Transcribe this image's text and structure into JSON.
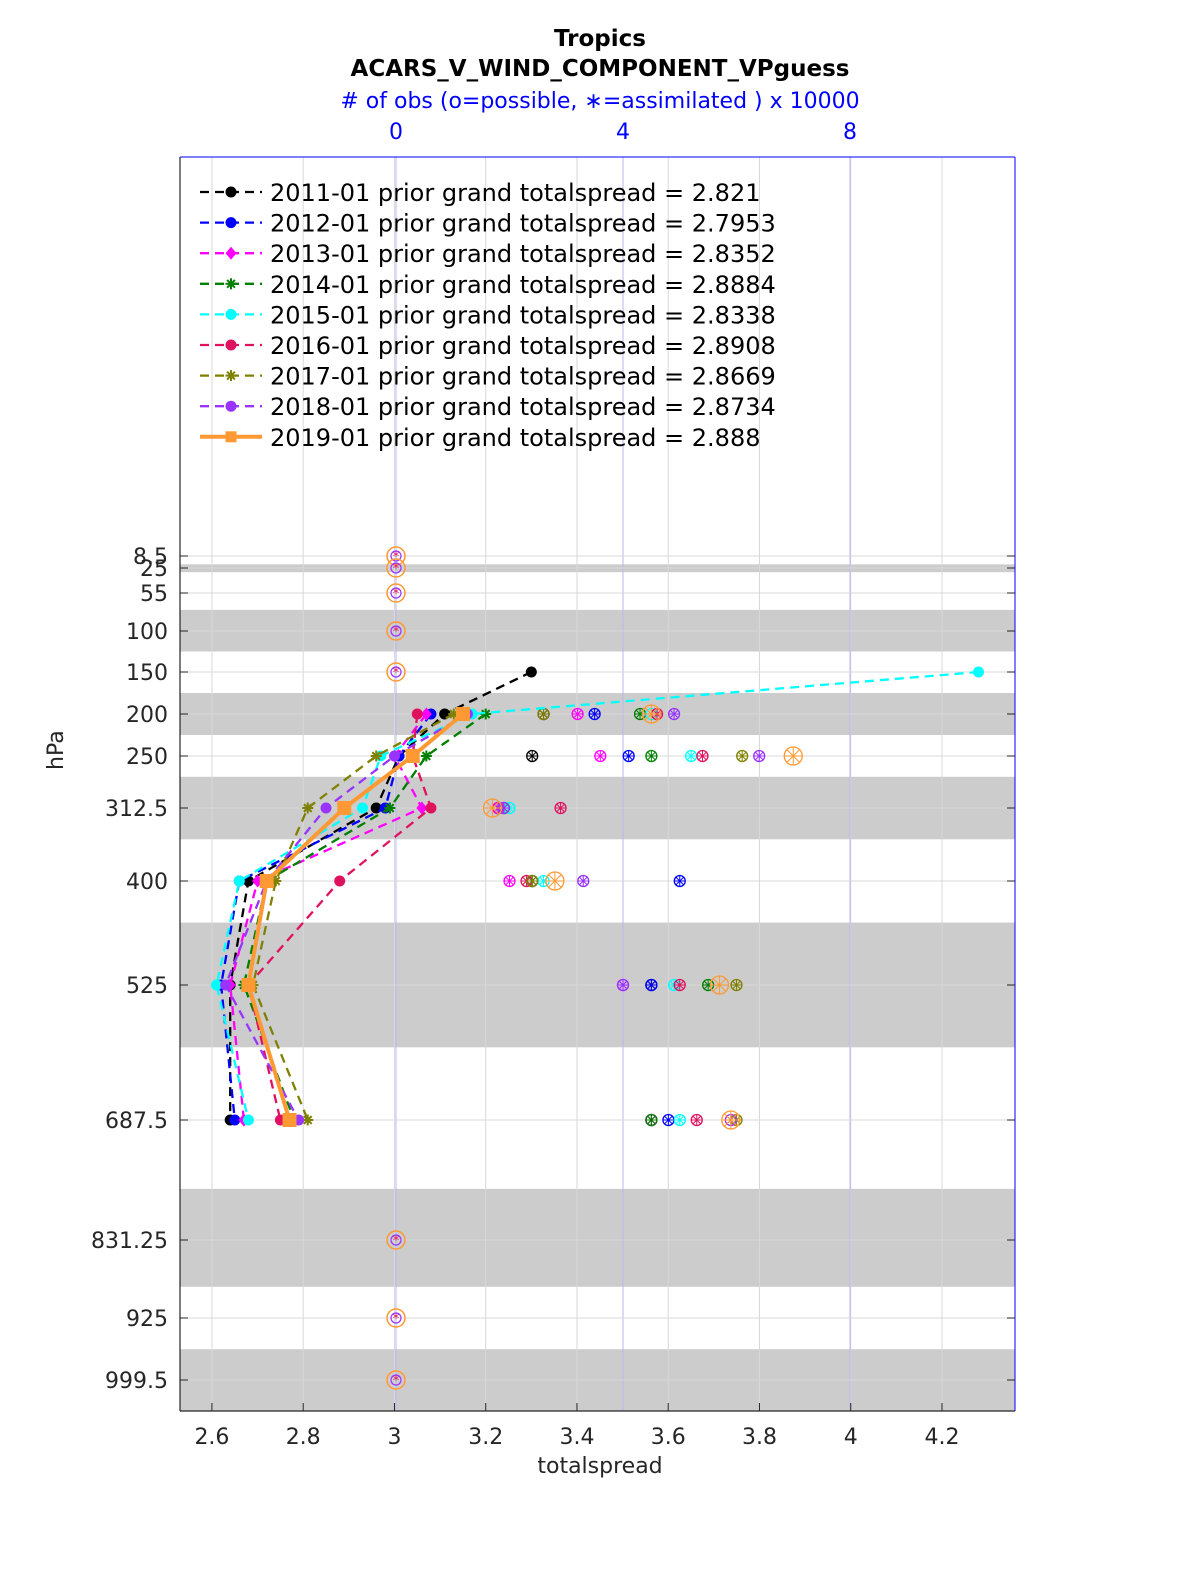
{
  "chart_data": {
    "type": "line",
    "title": "Tropics",
    "subtitle": "ACARS_V_WIND_COMPONENT_VPguess",
    "top_axis_label": "# of obs (o=possible, ∗=assimilated ) x 10000",
    "top_axis_ticks": [
      "0",
      "4",
      "8"
    ],
    "top_axis_values": [
      0,
      4,
      8
    ],
    "xlabel": "totalspread",
    "ylabel": "hPa",
    "xlim": [
      2.53,
      4.36
    ],
    "x_ticks": [
      2.6,
      2.8,
      3,
      3.2,
      3.4,
      3.6,
      3.8,
      4,
      4.2
    ],
    "x_tick_labels": [
      "2.6",
      "2.8",
      "3",
      "3.2",
      "3.4",
      "3.6",
      "3.8",
      "4",
      "4.2"
    ],
    "y_levels": [
      8.5,
      25,
      55,
      100,
      150,
      200,
      250,
      312.5,
      400,
      525,
      687.5,
      831.25,
      925,
      999.5
    ],
    "y_tick_labels": [
      "8.5",
      "25",
      "55",
      "100",
      "150",
      "200",
      "250",
      "312.5",
      "400",
      "525",
      "687.5",
      "831.25",
      "925",
      "999.5"
    ],
    "shaded_bands": [
      [
        20,
        30
      ],
      [
        75,
        125
      ],
      [
        175,
        225
      ],
      [
        275,
        350
      ],
      [
        450,
        600
      ],
      [
        770,
        887.5
      ],
      [
        962.5,
        1037
      ]
    ],
    "empty_levels": [
      8.5,
      25,
      55,
      100,
      150,
      831.25,
      925,
      999.5
    ],
    "grid": true,
    "legend_position": "top-left",
    "series": [
      {
        "name": "2011-01",
        "label": "2011-01 prior grand totalspread = 2.821",
        "color": "#000000",
        "marker": "circle",
        "levels": [
          150,
          200,
          250,
          312.5,
          400,
          525,
          687.5
        ],
        "x": [
          3.3,
          3.11,
          3.01,
          2.96,
          2.68,
          2.64,
          2.64
        ],
        "obs_possible": [
          null,
          2.6,
          2.4,
          1.8,
          2.4,
          4.5,
          4.5
        ],
        "obs_assim": [
          null,
          2.6,
          2.4,
          1.8,
          2.4,
          4.5,
          4.5
        ]
      },
      {
        "name": "2012-01",
        "label": "2012-01 prior grand totalspread = 2.7953",
        "color": "#0000ff",
        "marker": "circle",
        "levels": [
          200,
          250,
          312.5,
          400,
          525,
          687.5
        ],
        "x": [
          3.08,
          3.01,
          2.98,
          2.66,
          2.62,
          2.65
        ],
        "obs_possible": [
          3.5,
          4.1,
          1.8,
          5.0,
          4.5,
          4.8
        ],
        "obs_assim": [
          3.5,
          4.1,
          1.8,
          5.0,
          4.5,
          4.8
        ]
      },
      {
        "name": "2013-01",
        "label": "2013-01 prior grand totalspread = 2.8352",
        "color": "#ff00ff",
        "marker": "diamond",
        "levels": [
          200,
          250,
          312.5,
          400,
          525,
          687.5
        ],
        "x": [
          3.07,
          3.0,
          3.06,
          2.7,
          2.64,
          2.67
        ],
        "obs_possible": [
          3.2,
          3.6,
          1.8,
          2.0,
          4.0,
          4.5
        ],
        "obs_assim": [
          3.2,
          3.6,
          1.8,
          2.0,
          4.0,
          4.5
        ]
      },
      {
        "name": "2014-01",
        "label": "2014-01 prior grand totalspread = 2.8884",
        "color": "#008000",
        "marker": "star",
        "levels": [
          200,
          250,
          312.5,
          400,
          525,
          687.5
        ],
        "x": [
          3.2,
          3.07,
          2.99,
          2.72,
          2.67,
          2.78
        ],
        "obs_possible": [
          4.3,
          4.5,
          1.9,
          2.4,
          5.5,
          4.5
        ],
        "obs_assim": [
          4.3,
          4.5,
          1.9,
          2.4,
          5.5,
          4.5
        ]
      },
      {
        "name": "2015-01",
        "label": "2015-01 prior grand totalspread = 2.8338",
        "color": "#00ffff",
        "marker": "circle",
        "levels": [
          150,
          200,
          250,
          312.5,
          400,
          525,
          687.5
        ],
        "x": [
          4.28,
          3.17,
          2.97,
          2.93,
          2.66,
          2.61,
          2.68
        ],
        "obs_possible": [
          null,
          4.5,
          5.2,
          2.0,
          2.6,
          4.9,
          5.0
        ],
        "obs_assim": [
          null,
          4.5,
          5.2,
          2.0,
          2.6,
          4.9,
          5.0
        ]
      },
      {
        "name": "2016-01",
        "label": "2016-01 prior grand totalspread = 2.8908",
        "color": "#e0115f",
        "marker": "circle",
        "levels": [
          200,
          250,
          312.5,
          400,
          525,
          687.5
        ],
        "x": [
          3.05,
          3.04,
          3.08,
          2.88,
          2.68,
          2.75
        ],
        "obs_possible": [
          4.6,
          5.4,
          2.9,
          2.3,
          5.0,
          5.3
        ],
        "obs_assim": [
          4.6,
          5.4,
          2.9,
          2.3,
          5.0,
          5.3
        ]
      },
      {
        "name": "2017-01",
        "label": "2017-01 prior grand totalspread = 2.8669",
        "color": "#808000",
        "marker": "star",
        "levels": [
          200,
          250,
          312.5,
          400,
          525,
          687.5
        ],
        "x": [
          3.13,
          2.96,
          2.81,
          2.74,
          2.69,
          2.81
        ],
        "obs_possible": [
          2.6,
          6.1,
          1.9,
          2.4,
          6.0,
          6.0
        ],
        "obs_assim": [
          2.6,
          6.1,
          1.9,
          2.4,
          6.0,
          6.0
        ]
      },
      {
        "name": "2018-01",
        "label": "2018-01 prior grand totalspread = 2.8734",
        "color": "#9933ff",
        "marker": "circle",
        "levels": [
          200,
          250,
          312.5,
          400,
          525,
          687.5
        ],
        "x": [
          3.16,
          3.0,
          2.85,
          2.72,
          2.63,
          2.79
        ],
        "obs_possible": [
          4.9,
          6.4,
          1.9,
          3.3,
          4.0,
          5.9
        ],
        "obs_assim": [
          4.9,
          6.4,
          1.9,
          3.3,
          4.0,
          5.9
        ]
      },
      {
        "name": "2019-01",
        "label": "2019-01 prior grand totalspread = 2.888",
        "color": "#ff9933",
        "marker": "square",
        "levels": [
          200,
          250,
          312.5,
          400,
          525,
          687.5
        ],
        "x": [
          3.15,
          3.04,
          2.89,
          2.72,
          2.68,
          2.77
        ],
        "obs_possible": [
          4.5,
          7.0,
          1.7,
          2.8,
          5.7,
          5.9
        ],
        "obs_assim": [
          4.5,
          7.0,
          1.7,
          2.8,
          5.7,
          5.9
        ]
      }
    ]
  }
}
